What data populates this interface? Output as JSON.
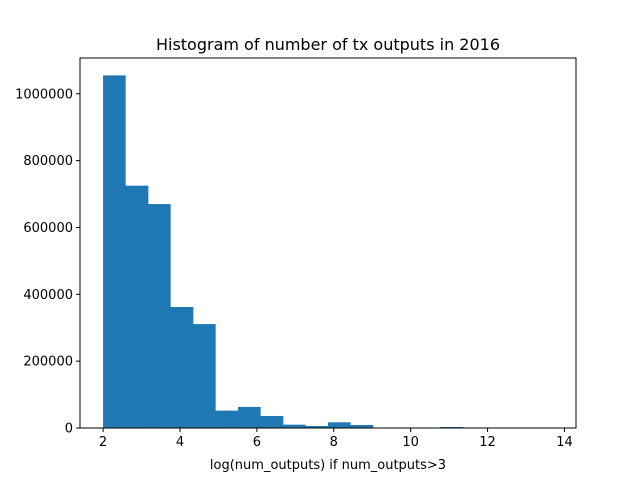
{
  "chart_data": {
    "type": "bar",
    "title": "Histogram of number of tx outputs in 2016",
    "xlabel": "log(num_outputs) if num_outputs>3",
    "ylabel": "",
    "xlim": [
      1.4,
      14.3
    ],
    "ylim": [
      0,
      1107000
    ],
    "xticks": [
      2,
      4,
      6,
      8,
      10,
      12,
      14
    ],
    "xtick_labels": [
      "2",
      "4",
      "6",
      "8",
      "10",
      "12",
      "14"
    ],
    "yticks": [
      0,
      200000,
      400000,
      600000,
      800000,
      1000000
    ],
    "ytick_labels": [
      "0",
      "200000",
      "400000",
      "600000",
      "800000",
      "1000000"
    ],
    "grid": false,
    "bar_color": "#1f77b4",
    "bins": [
      {
        "start": 2.0,
        "end": 2.58,
        "value": 1055000
      },
      {
        "start": 2.58,
        "end": 3.17,
        "value": 725000
      },
      {
        "start": 3.17,
        "end": 3.75,
        "value": 670000
      },
      {
        "start": 3.75,
        "end": 4.34,
        "value": 362000
      },
      {
        "start": 4.34,
        "end": 4.92,
        "value": 311000
      },
      {
        "start": 4.92,
        "end": 5.51,
        "value": 52000
      },
      {
        "start": 5.51,
        "end": 6.09,
        "value": 63000
      },
      {
        "start": 6.09,
        "end": 6.68,
        "value": 36000
      },
      {
        "start": 6.68,
        "end": 7.26,
        "value": 10000
      },
      {
        "start": 7.26,
        "end": 7.85,
        "value": 6000
      },
      {
        "start": 7.85,
        "end": 8.43,
        "value": 17000
      },
      {
        "start": 8.43,
        "end": 9.02,
        "value": 9000
      },
      {
        "start": 9.02,
        "end": 9.6,
        "value": 1000
      },
      {
        "start": 9.6,
        "end": 10.19,
        "value": 500
      },
      {
        "start": 10.19,
        "end": 10.77,
        "value": 800
      },
      {
        "start": 10.77,
        "end": 11.36,
        "value": 3000
      },
      {
        "start": 11.36,
        "end": 11.94,
        "value": 400
      },
      {
        "start": 11.94,
        "end": 12.53,
        "value": 200
      },
      {
        "start": 12.53,
        "end": 13.11,
        "value": 100
      },
      {
        "start": 13.11,
        "end": 13.7,
        "value": 300
      }
    ]
  }
}
